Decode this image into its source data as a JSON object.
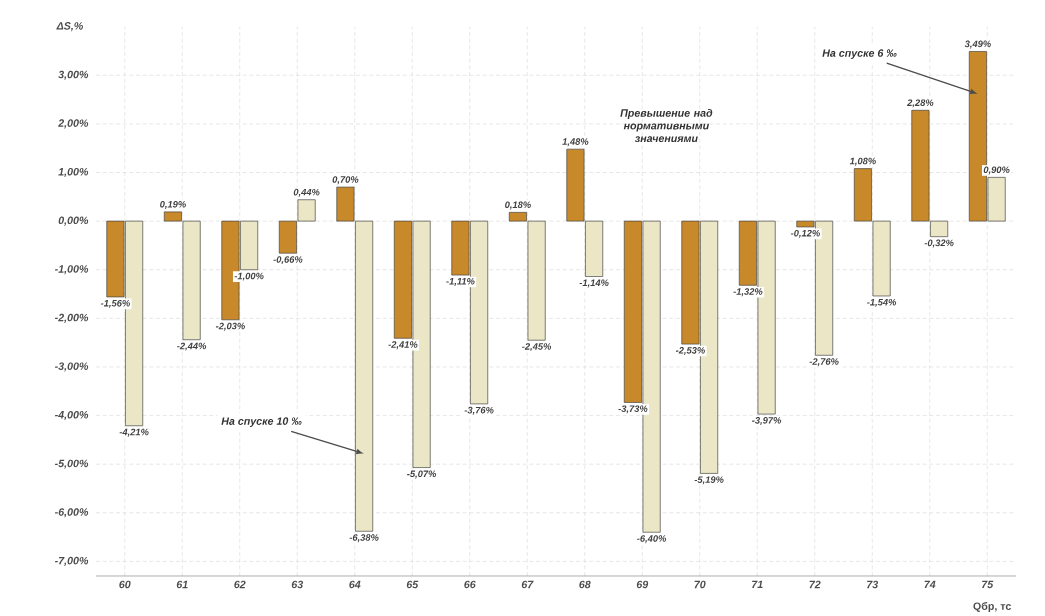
{
  "chart_data": {
    "type": "bar",
    "ylabel": "ΔS,%",
    "xlabel": "Qбр, тс",
    "categories": [
      "60",
      "61",
      "62",
      "63",
      "64",
      "65",
      "66",
      "67",
      "68",
      "69",
      "70",
      "71",
      "72",
      "73",
      "74",
      "75"
    ],
    "series": [
      {
        "name": "На спуске 6 ‰",
        "color": "#c8892a",
        "values": [
          -1.56,
          0.19,
          -2.03,
          -0.66,
          0.7,
          -2.41,
          -1.11,
          0.18,
          1.48,
          -3.73,
          -2.53,
          -1.32,
          -0.12,
          1.08,
          2.28,
          3.49
        ],
        "value_labels": [
          "-1,56%",
          "0,19%",
          "-2,03%",
          "-0,66%",
          "0,70%",
          "-2,41%",
          "-1,11%",
          "0,18%",
          "1,48%",
          "-3,73%",
          "-2,53%",
          "-1,32%",
          "-0,12%",
          "1,08%",
          "2,28%",
          "3,49%"
        ]
      },
      {
        "name": "На спуске 10 ‰",
        "color": "#ebe6c6",
        "values": [
          -4.21,
          -2.44,
          -1.0,
          0.44,
          -6.38,
          -5.07,
          -3.76,
          -2.45,
          -1.14,
          -6.4,
          -5.19,
          -3.97,
          -2.76,
          -1.54,
          -0.32,
          0.9
        ],
        "value_labels": [
          "-4,21%",
          "-2,44%",
          "-1,00%",
          "0,44%",
          "-6,38%",
          "-5,07%",
          "-3,76%",
          "-2,45%",
          "-1,14%",
          "-6,40%",
          "-5,19%",
          "-3,97%",
          "-2,76%",
          "-1,54%",
          "-0,32%",
          "0,90%"
        ]
      }
    ],
    "ylim": [
      -7.3,
      4.0
    ],
    "yticks": [
      {
        "value": -7,
        "label": "-7,00%"
      },
      {
        "value": -6,
        "label": "-6,00%"
      },
      {
        "value": -5,
        "label": "-5,00%"
      },
      {
        "value": -4,
        "label": "-4,00%"
      },
      {
        "value": -3,
        "label": "-3,00%"
      },
      {
        "value": -2,
        "label": "-2,00%"
      },
      {
        "value": -1,
        "label": "-1,00%"
      },
      {
        "value": 0,
        "label": "0,00%"
      },
      {
        "value": 1,
        "label": "1,00%"
      },
      {
        "value": 2,
        "label": "2,00%"
      },
      {
        "value": 3,
        "label": "3,00%"
      }
    ],
    "annotations": [
      "Превышение над нормативными значениями"
    ],
    "grid": true
  }
}
